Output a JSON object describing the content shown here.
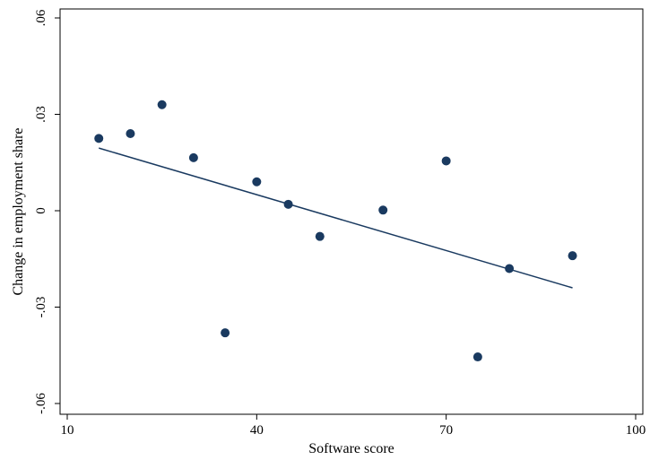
{
  "chart_data": {
    "type": "scatter",
    "title": "",
    "xlabel": "Software score",
    "ylabel": "Change in employment share",
    "xlim": [
      10,
      100
    ],
    "ylim": [
      -0.06,
      0.06
    ],
    "xticks": [
      10,
      40,
      70,
      100
    ],
    "xtick_labels": [
      "10",
      "40",
      "70",
      "100"
    ],
    "yticks": [
      -0.06,
      -0.03,
      0,
      0.03,
      0.06
    ],
    "ytick_labels": [
      "-.06",
      "-.03",
      "0",
      ".03",
      ".06"
    ],
    "grid": false,
    "marker_color": "#1a3a60",
    "line_color": "#1a3a60",
    "points": [
      {
        "x": 15,
        "y": 0.0225
      },
      {
        "x": 20,
        "y": 0.024
      },
      {
        "x": 25,
        "y": 0.033
      },
      {
        "x": 30,
        "y": 0.0165
      },
      {
        "x": 35,
        "y": -0.038
      },
      {
        "x": 40,
        "y": 0.009
      },
      {
        "x": 45,
        "y": 0.002
      },
      {
        "x": 50,
        "y": -0.008
      },
      {
        "x": 60,
        "y": 0.0002
      },
      {
        "x": 70,
        "y": 0.0155
      },
      {
        "x": 75,
        "y": -0.0455
      },
      {
        "x": 80,
        "y": -0.018
      },
      {
        "x": 90,
        "y": -0.014
      }
    ],
    "fit_line": {
      "x": [
        15,
        90
      ],
      "y": [
        0.0195,
        -0.024
      ]
    }
  }
}
